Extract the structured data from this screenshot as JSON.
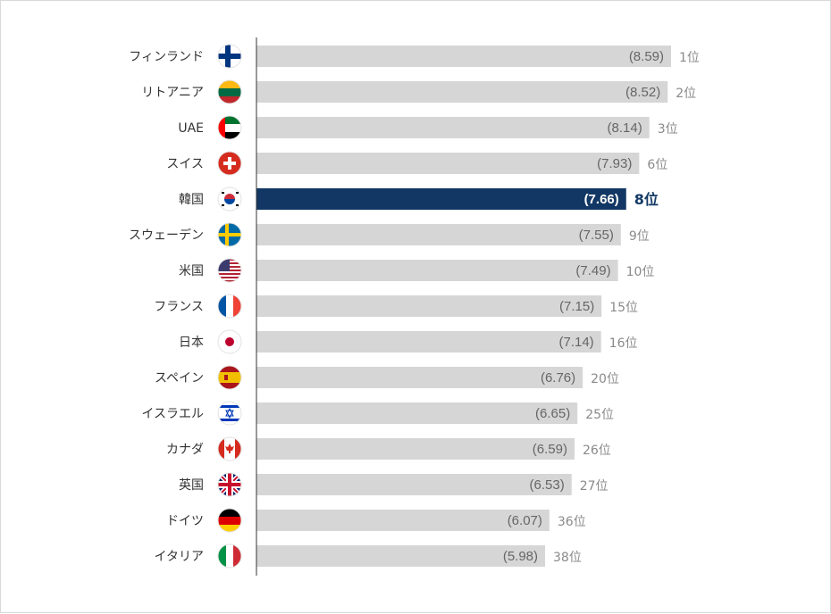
{
  "chart_data": {
    "type": "bar",
    "orientation": "horizontal",
    "xlim": [
      0,
      8.59
    ],
    "highlight_color": "#123764",
    "bar_color": "#d6d6d6",
    "highlight": "韓国",
    "categories": [
      "フィンランド",
      "リトアニア",
      "UAE",
      "スイス",
      "韓国",
      "スウェーデン",
      "米国",
      "フランス",
      "日本",
      "スペイン",
      "イスラエル",
      "カナダ",
      "英国",
      "ドイツ",
      "イタリア"
    ],
    "values": [
      8.59,
      8.52,
      8.14,
      7.93,
      7.66,
      7.55,
      7.49,
      7.15,
      7.14,
      6.76,
      6.65,
      6.59,
      6.53,
      6.07,
      5.98
    ],
    "value_labels": [
      "(8.59)",
      "(8.52)",
      "(8.14)",
      "(7.93)",
      "(7.66)",
      "(7.55)",
      "(7.49)",
      "(7.15)",
      "(7.14)",
      "(6.76)",
      "(6.65)",
      "(6.59)",
      "(6.53)",
      "(6.07)",
      "(5.98)"
    ],
    "ranks": [
      "1位",
      "2位",
      "3位",
      "6位",
      "8位",
      "9位",
      "10位",
      "15位",
      "16位",
      "20位",
      "25位",
      "26位",
      "27位",
      "36位",
      "38位"
    ],
    "flag_icons": [
      "finland-flag-icon",
      "lithuania-flag-icon",
      "uae-flag-icon",
      "switzerland-flag-icon",
      "korea-flag-icon",
      "sweden-flag-icon",
      "usa-flag-icon",
      "france-flag-icon",
      "japan-flag-icon",
      "spain-flag-icon",
      "israel-flag-icon",
      "canada-flag-icon",
      "uk-flag-icon",
      "germany-flag-icon",
      "italy-flag-icon"
    ]
  }
}
